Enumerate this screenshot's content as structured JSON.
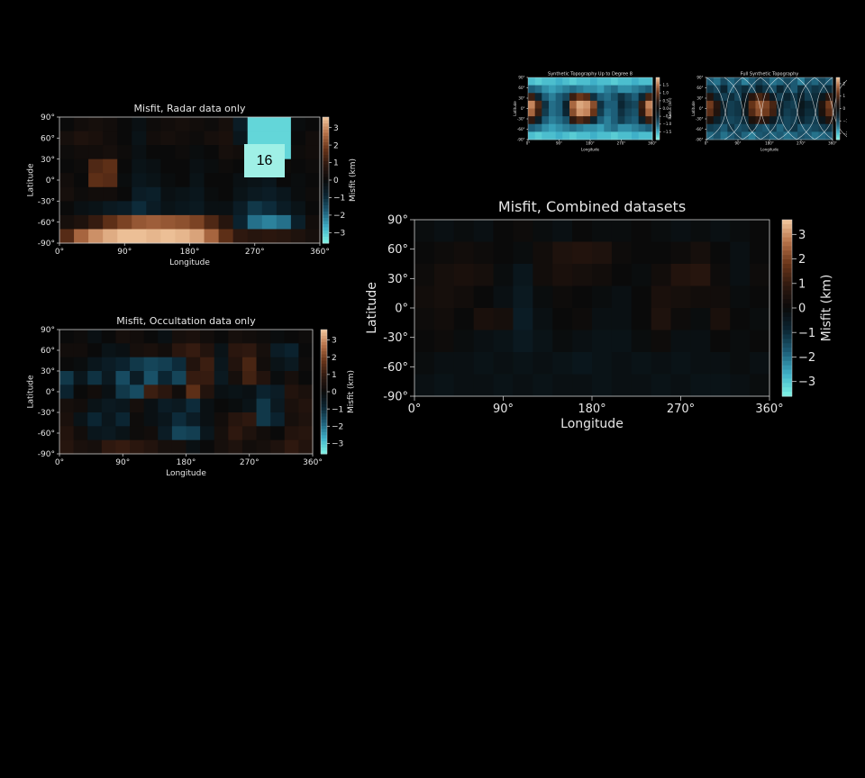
{
  "slide_badge": "16",
  "colormap": [
    "#7ff5e6",
    "#3fb0c8",
    "#1d5e78",
    "#0b2532",
    "#0a0a0a",
    "#2e180f",
    "#6a3519",
    "#b8734a",
    "#f3c9a0"
  ],
  "chart_data": [
    {
      "id": "radar",
      "type": "heatmap",
      "title": "Misfit, Radar data only",
      "xlabel": "Longitude",
      "ylabel": "Latitude",
      "xticks": [
        "0°",
        "90°",
        "180°",
        "270°",
        "360°"
      ],
      "yticks": [
        "90°",
        "60°",
        "30°",
        "0°",
        "-30°",
        "-60°",
        "-90°"
      ],
      "xlim": [
        0,
        360
      ],
      "ylim": [
        -90,
        90
      ],
      "cbar_label": "Misfit (km)",
      "cbar_ticks": [
        "3",
        "2",
        "1",
        "0",
        "−1",
        "−2",
        "−3"
      ],
      "clim": [
        -3.6,
        3.6
      ],
      "values": [
        [
          0,
          0.2,
          0.3,
          0.2,
          0,
          -0.2,
          0.1,
          0.2,
          0.3,
          0.2,
          0.1,
          0.3,
          -0.6,
          -3.2,
          -3.2,
          -3.2,
          -0.1,
          0
        ],
        [
          0.3,
          0.5,
          0.4,
          0.2,
          0,
          -0.3,
          0.2,
          0.3,
          0.2,
          0.1,
          0.3,
          0.4,
          -0.4,
          -3.2,
          -3.2,
          -3.2,
          0,
          0.2
        ],
        [
          0.1,
          0.2,
          0.2,
          0.3,
          0.1,
          -0.2,
          0,
          0,
          0.1,
          -0.1,
          0,
          0.3,
          0.2,
          -3.2,
          -3.2,
          -3.2,
          0.1,
          0.2
        ],
        [
          0,
          0.1,
          1.4,
          1.6,
          0,
          -0.3,
          -0.2,
          0,
          0,
          -0.2,
          -0.1,
          0.1,
          0,
          0,
          0,
          0.1,
          0,
          0.1
        ],
        [
          0.2,
          0,
          1.6,
          1.5,
          -0.1,
          -0.4,
          -0.3,
          -0.1,
          0,
          -0.3,
          0,
          0,
          -0.2,
          -0.3,
          -0.4,
          0,
          -0.1,
          0
        ],
        [
          0.3,
          0.1,
          0.2,
          0.2,
          0,
          -0.6,
          -0.7,
          -0.2,
          -0.3,
          -0.4,
          -0.1,
          0,
          -0.3,
          -0.5,
          -0.6,
          -0.4,
          -0.1,
          0.1
        ],
        [
          0,
          -0.2,
          -0.3,
          -0.5,
          -0.6,
          -1.0,
          -0.6,
          -0.3,
          -0.4,
          -0.5,
          -0.2,
          -0.2,
          -0.6,
          -1.2,
          -1.0,
          -0.6,
          -0.3,
          0
        ],
        [
          0.3,
          0.5,
          1.0,
          1.6,
          2.0,
          2.3,
          2.4,
          2.3,
          2.2,
          2.0,
          1.4,
          0.7,
          -0.8,
          -2.0,
          -2.2,
          -2.0,
          -0.7,
          0.2
        ],
        [
          1.5,
          2.5,
          3.0,
          3.3,
          3.5,
          3.5,
          3.4,
          3.5,
          3.4,
          3.2,
          2.5,
          1.6,
          0.9,
          0.7,
          0.8,
          0.7,
          0.5,
          0.3
        ]
      ]
    },
    {
      "id": "occultation",
      "type": "heatmap",
      "title": "Misfit, Occultation data only",
      "xlabel": "Longitude",
      "ylabel": "Latitude",
      "xticks": [
        "0°",
        "90°",
        "180°",
        "270°",
        "360°"
      ],
      "yticks": [
        "90°",
        "60°",
        "30°",
        "0°",
        "-30°",
        "-60°",
        "-90°"
      ],
      "xlim": [
        0,
        360
      ],
      "ylim": [
        -90,
        90
      ],
      "cbar_label": "Misfit (km)",
      "cbar_ticks": [
        "3",
        "2",
        "1",
        "0",
        "−1",
        "−2",
        "−3"
      ],
      "clim": [
        -3.6,
        3.6
      ],
      "values": [
        [
          0,
          0.1,
          -0.2,
          0,
          0.3,
          0.2,
          0,
          -0.2,
          0.3,
          0.4,
          0.2,
          0,
          0.3,
          0.2,
          0.1,
          -0.1,
          0,
          0.1
        ],
        [
          0.2,
          0.2,
          0,
          -0.3,
          -0.2,
          0.3,
          0.4,
          0.2,
          0.8,
          1.0,
          0.6,
          -0.3,
          0.8,
          0.9,
          0.3,
          -0.6,
          -0.8,
          0
        ],
        [
          0,
          -0.1,
          -0.4,
          -0.6,
          -0.8,
          -1.2,
          -1.4,
          -1.3,
          -1.0,
          0.6,
          1.1,
          -0.4,
          0.6,
          1.3,
          0.2,
          -0.3,
          -0.5,
          0.1
        ],
        [
          -1.2,
          -0.4,
          -1.1,
          -0.5,
          -1.5,
          -0.6,
          -1.6,
          -0.9,
          -1.4,
          1.0,
          1.0,
          -0.5,
          0.3,
          1.2,
          0.6,
          -0.1,
          0.3,
          0
        ],
        [
          -0.8,
          0,
          0.2,
          -0.2,
          -1.2,
          -1.5,
          1.1,
          0.8,
          0.2,
          1.6,
          0.6,
          -0.2,
          -0.3,
          -0.2,
          -0.8,
          -0.6,
          0.6,
          0.4
        ],
        [
          0.3,
          0.2,
          -0.3,
          -0.5,
          -0.4,
          0.3,
          -0.2,
          -0.6,
          -0.5,
          -1.0,
          -0.2,
          0,
          -0.1,
          -0.3,
          -1.2,
          -0.5,
          0.4,
          0.6
        ],
        [
          0.4,
          -0.3,
          -0.9,
          -0.4,
          -0.9,
          0.1,
          -0.2,
          -0.4,
          -1.0,
          -0.6,
          -0.2,
          0.2,
          0.7,
          0.9,
          -1.2,
          -0.8,
          0.3,
          0.5
        ],
        [
          0.6,
          0.2,
          -0.4,
          -0.5,
          -0.3,
          0.1,
          0.2,
          -0.6,
          -1.4,
          -1.3,
          -0.4,
          0.3,
          0.9,
          0.5,
          0.2,
          0,
          0.6,
          0.7
        ],
        [
          0.7,
          0.4,
          0.3,
          0.9,
          1.0,
          0.8,
          0.6,
          0.3,
          0.3,
          -0.2,
          0,
          0.3,
          0.5,
          0.2,
          0.3,
          0.5,
          0.9,
          0.6
        ]
      ]
    },
    {
      "id": "combined",
      "type": "heatmap",
      "title": "Misfit, Combined datasets",
      "xlabel": "Longitude",
      "ylabel": "Latitude",
      "xticks": [
        "0°",
        "90°",
        "180°",
        "270°",
        "360°"
      ],
      "yticks": [
        "90°",
        "60°",
        "30°",
        "0°",
        "-30°",
        "-60°",
        "-90°"
      ],
      "xlim": [
        0,
        360
      ],
      "ylim": [
        -90,
        90
      ],
      "cbar_label": "Misfit (km)",
      "cbar_ticks": [
        "3",
        "2",
        "1",
        "0",
        "−1",
        "−2",
        "−3"
      ],
      "clim": [
        -3.6,
        3.6
      ],
      "values": [
        [
          -0.1,
          -0.2,
          -0.1,
          -0.2,
          0,
          0.1,
          -0.1,
          -0.2,
          0,
          -0.1,
          -0.1,
          0,
          -0.1,
          -0.2,
          -0.1,
          -0.2,
          -0.1,
          0
        ],
        [
          0,
          0.1,
          0.2,
          0.1,
          0,
          -0.1,
          0.2,
          0.5,
          0.6,
          0.5,
          0.1,
          0,
          0,
          0.1,
          0.3,
          0,
          -0.2,
          0
        ],
        [
          0.1,
          0.3,
          0.4,
          0.3,
          -0.1,
          -0.4,
          0.2,
          0.4,
          0.3,
          0.2,
          0,
          -0.1,
          0.2,
          0.6,
          0.7,
          0.1,
          -0.2,
          0.1
        ],
        [
          0.2,
          0.3,
          0.2,
          0,
          -0.2,
          -0.5,
          -0.1,
          0.1,
          0,
          -0.1,
          -0.2,
          0,
          0.4,
          0.3,
          0.2,
          0.2,
          -0.1,
          0
        ],
        [
          0.1,
          0.2,
          0,
          0.4,
          0.3,
          -0.6,
          -0.2,
          0,
          0.1,
          -0.2,
          -0.2,
          0,
          0.5,
          0.1,
          -0.1,
          0.4,
          0,
          -0.1
        ],
        [
          0,
          0.1,
          -0.1,
          -0.2,
          -0.3,
          -0.5,
          -0.3,
          -0.1,
          -0.2,
          -0.3,
          -0.3,
          -0.1,
          0.1,
          -0.2,
          -0.2,
          0,
          -0.1,
          0
        ],
        [
          -0.1,
          -0.2,
          -0.2,
          -0.3,
          -0.2,
          -0.3,
          -0.2,
          -0.3,
          -0.4,
          -0.3,
          -0.2,
          -0.3,
          -0.2,
          -0.3,
          -0.2,
          -0.2,
          -0.1,
          -0.2
        ],
        [
          -0.2,
          -0.3,
          -0.2,
          -0.2,
          -0.3,
          -0.2,
          -0.3,
          -0.2,
          -0.2,
          -0.3,
          -0.2,
          -0.2,
          -0.3,
          -0.2,
          -0.3,
          -0.3,
          -0.2,
          -0.1
        ]
      ]
    },
    {
      "id": "synth8",
      "type": "heatmap",
      "title": "Synthetic Topography Up to Degree 8",
      "xlabel": "Longitude",
      "ylabel": "Latitude",
      "xticks": [
        "0°",
        "90°",
        "180°",
        "270°",
        "360°"
      ],
      "yticks": [
        "90°",
        "60°",
        "30°",
        "0°",
        "-30°",
        "-60°",
        "-90°"
      ],
      "xlim": [
        0,
        360
      ],
      "ylim": [
        -90,
        90
      ],
      "cbar_label": "Radius (km)",
      "cbar_ticks": [
        "1.5",
        "1.0",
        "0.5",
        "0.0",
        "−0.5",
        "−1.0",
        "−1.5"
      ],
      "clim": [
        -2,
        2
      ],
      "values": [
        [
          -1.6,
          -1.7,
          -1.6,
          -1.6,
          -1.5,
          -1.6,
          -1.7,
          -1.6,
          -1.6,
          -1.5,
          -1.6,
          -1.6,
          -1.7,
          -1.6,
          -1.6,
          -1.5,
          -1.6,
          -1.6
        ],
        [
          -1.0,
          -1.1,
          -1.3,
          -1.4,
          -1.3,
          -1.2,
          -1.1,
          -1.2,
          -1.3,
          -1.3,
          -1.4,
          -1.2,
          -1.1,
          -1.3,
          -1.3,
          -1.2,
          -1.1,
          -1.0
        ],
        [
          0.6,
          -0.5,
          -1.0,
          -1.2,
          -1.0,
          -0.8,
          0.6,
          1.0,
          0.8,
          -0.6,
          -1.0,
          -1.1,
          -0.9,
          -0.6,
          -0.8,
          -1.0,
          -0.5,
          0.7
        ],
        [
          1.6,
          0.8,
          -0.6,
          -1.1,
          -1.0,
          -0.4,
          1.4,
          1.8,
          1.7,
          1.2,
          -0.6,
          -1.0,
          -1.0,
          -0.5,
          -0.7,
          -0.8,
          0.6,
          1.6
        ],
        [
          1.4,
          0.6,
          -0.7,
          -1.1,
          -1.0,
          -0.5,
          1.2,
          1.7,
          1.6,
          1.0,
          -0.7,
          -1.1,
          -1.0,
          -0.6,
          -0.8,
          -0.9,
          0.5,
          1.4
        ],
        [
          0.5,
          -0.4,
          -1.0,
          -1.2,
          -1.1,
          -0.9,
          0.5,
          0.8,
          0.6,
          -0.5,
          -1.0,
          -1.2,
          -1.0,
          -0.7,
          -0.9,
          -1.0,
          -0.4,
          0.6
        ],
        [
          -1.0,
          -1.1,
          -1.3,
          -1.4,
          -1.3,
          -1.2,
          -1.1,
          -1.2,
          -1.3,
          -1.3,
          -1.4,
          -1.2,
          -1.1,
          -1.3,
          -1.3,
          -1.2,
          -1.1,
          -1.0
        ],
        [
          -1.6,
          -1.7,
          -1.6,
          -1.6,
          -1.5,
          -1.6,
          -1.7,
          -1.6,
          -1.6,
          -1.5,
          -1.6,
          -1.6,
          -1.7,
          -1.6,
          -1.6,
          -1.5,
          -1.6,
          -1.6
        ]
      ]
    },
    {
      "id": "synthfull",
      "type": "heatmap",
      "title": "Full Synthetic Topography",
      "xlabel": "Longitude",
      "ylabel": "Latitude",
      "xticks": [
        "0°",
        "90°",
        "180°",
        "270°",
        "360°"
      ],
      "yticks": [
        "90°",
        "60°",
        "30°",
        "0°",
        "-30°",
        "-60°",
        "-90°"
      ],
      "xlim": [
        0,
        360
      ],
      "ylim": [
        -90,
        90
      ],
      "cbar_label": "",
      "cbar_ticks": [
        "2",
        "1",
        "0",
        "−1",
        "−2"
      ],
      "clim": [
        -2.5,
        2.5
      ],
      "values": [
        [
          -1.2,
          -1.4,
          -1.0,
          -1.3,
          -1.1,
          -1.5,
          -1.2,
          -0.9,
          -1.1,
          -1.4,
          -1.3,
          -1.0,
          -1.2,
          -1.5,
          -1.1,
          -1.3,
          -1.0,
          -1.2
        ],
        [
          -0.8,
          -1.0,
          -0.6,
          -1.2,
          -0.9,
          -0.7,
          -1.0,
          -0.5,
          -0.8,
          -1.1,
          -0.6,
          -0.9,
          -1.2,
          -0.7,
          -1.0,
          -0.8,
          -0.9,
          -0.7
        ],
        [
          0.4,
          -0.6,
          -0.9,
          -0.7,
          -1.0,
          -0.4,
          0.5,
          0.9,
          0.6,
          -0.4,
          -0.9,
          -0.6,
          -0.8,
          -0.5,
          -0.9,
          -0.7,
          -0.3,
          0.5
        ],
        [
          1.3,
          0.5,
          -0.5,
          -0.9,
          -0.8,
          -0.2,
          1.2,
          1.6,
          1.4,
          0.9,
          -0.5,
          -0.8,
          -0.9,
          -0.3,
          -0.6,
          -0.6,
          0.4,
          1.3
        ],
        [
          1.1,
          0.4,
          -0.6,
          -0.9,
          -0.8,
          -0.3,
          1.0,
          1.5,
          1.3,
          0.8,
          -0.6,
          -0.9,
          -0.8,
          -0.4,
          -0.7,
          -0.7,
          0.3,
          1.1
        ],
        [
          0.3,
          -0.5,
          -0.8,
          -1.0,
          -0.9,
          -0.7,
          0.3,
          0.6,
          0.4,
          -0.4,
          -0.8,
          -1.0,
          -0.9,
          -0.6,
          -0.8,
          -0.9,
          -0.3,
          0.4
        ],
        [
          -0.9,
          -1.0,
          -1.2,
          -0.8,
          -1.1,
          -1.0,
          -0.7,
          -1.1,
          -1.2,
          -0.9,
          -1.3,
          -1.0,
          -0.8,
          -1.2,
          -1.1,
          -1.0,
          -0.9,
          -0.8
        ],
        [
          -1.3,
          -1.1,
          -1.4,
          -1.2,
          -1.0,
          -1.3,
          -1.5,
          -1.2,
          -1.1,
          -1.3,
          -1.2,
          -1.4,
          -1.3,
          -1.1,
          -1.2,
          -1.4,
          -1.3,
          -1.2
        ]
      ]
    }
  ]
}
